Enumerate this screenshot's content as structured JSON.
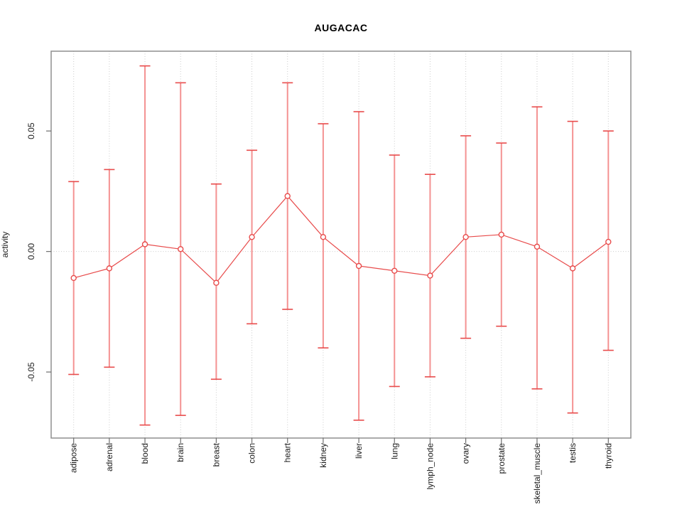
{
  "title": "AUGACAC",
  "chart_data": {
    "type": "line",
    "title": "AUGACAC",
    "ylabel": "activity",
    "xlabel": "",
    "marker": "open-circle",
    "error_bars": true,
    "legend": null,
    "grid": "dotted vertical line at each category, dotted horizontal line at 0",
    "ylim": [
      -0.0774,
      0.0831
    ],
    "yticks": [
      {
        "value": 0.05,
        "label": "0.05"
      },
      {
        "value": 0.0,
        "label": "0.00"
      },
      {
        "value": -0.05,
        "label": "-0.05"
      }
    ],
    "zero_line": true,
    "points": [
      {
        "label": "adipose",
        "value": -0.011,
        "upper": 0.029,
        "lower": -0.051
      },
      {
        "label": "adrenal",
        "value": -0.007,
        "upper": 0.034,
        "lower": -0.048
      },
      {
        "label": "blood",
        "value": 0.003,
        "upper": 0.077,
        "lower": -0.072
      },
      {
        "label": "brain",
        "value": 0.001,
        "upper": 0.07,
        "lower": -0.068
      },
      {
        "label": "breast",
        "value": -0.013,
        "upper": 0.028,
        "lower": -0.053
      },
      {
        "label": "colon",
        "value": 0.006,
        "upper": 0.042,
        "lower": -0.03
      },
      {
        "label": "heart",
        "value": 0.023,
        "upper": 0.07,
        "lower": -0.024
      },
      {
        "label": "kidney",
        "value": 0.006,
        "upper": 0.053,
        "lower": -0.04
      },
      {
        "label": "liver",
        "value": -0.006,
        "upper": 0.058,
        "lower": -0.07
      },
      {
        "label": "lung",
        "value": -0.008,
        "upper": 0.04,
        "lower": -0.056
      },
      {
        "label": "lymph_node",
        "value": -0.01,
        "upper": 0.032,
        "lower": -0.052
      },
      {
        "label": "ovary",
        "value": 0.006,
        "upper": 0.048,
        "lower": -0.036
      },
      {
        "label": "prostate",
        "value": 0.007,
        "upper": 0.045,
        "lower": -0.031
      },
      {
        "label": "skeletal_muscle",
        "value": 0.002,
        "upper": 0.06,
        "lower": -0.057
      },
      {
        "label": "testis",
        "value": -0.007,
        "upper": 0.054,
        "lower": -0.067
      },
      {
        "label": "thyroid",
        "value": 0.004,
        "upper": 0.05,
        "lower": -0.041
      }
    ],
    "colors": {
      "series": "#e84b4b",
      "stem": "#f49292",
      "grid": "#cbcbcb",
      "box": "#8f8f8f",
      "tick": "#6e6e6e",
      "text": "#1a1a1a"
    }
  }
}
